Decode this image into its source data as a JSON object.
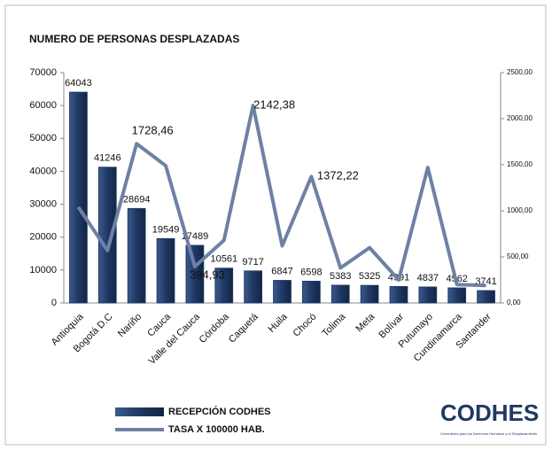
{
  "chart_data": {
    "type": "bar",
    "title": "NUMERO DE PERSONAS DESPLAZADAS",
    "categories": [
      "Antioquia",
      "Bogotá D.C",
      "Nariño",
      "Cauca",
      "Valle del Cauca",
      "Córdoba",
      "Caquetá",
      "Huila",
      "Chocó",
      "Tolima",
      "Meta",
      "Bolívar",
      "Putumayo",
      "Cundinamarca",
      "Santander"
    ],
    "series": [
      {
        "name": "RECEPCIÓN CODHES",
        "type": "bar",
        "color": "#1f3864",
        "values": [
          64043,
          41246,
          28694,
          19549,
          17489,
          10561,
          9717,
          6847,
          6598,
          5383,
          5325,
          4991,
          4837,
          4562,
          3741
        ]
      },
      {
        "name": "TASA X 100000 HAB.",
        "type": "line",
        "axis": "y2",
        "color": "#6f80a6",
        "values": [
          1040,
          570,
          1728.46,
          1490,
          394.93,
          680,
          2142.38,
          620,
          1372.22,
          380,
          600,
          250,
          1470,
          200,
          190
        ],
        "value_labels": [
          null,
          null,
          "1728,46",
          null,
          "394,93",
          null,
          "2142,38",
          null,
          "1372,22",
          null,
          null,
          null,
          null,
          null,
          null
        ]
      }
    ],
    "ylim": [
      0,
      70000
    ],
    "yticks": [
      0,
      10000,
      20000,
      30000,
      40000,
      50000,
      60000,
      70000
    ],
    "y2lim": [
      0,
      2500
    ],
    "y2ticks": [
      {
        "value": 0,
        "label": "0,00"
      },
      {
        "value": 500,
        "label": "500,00"
      },
      {
        "value": 1000,
        "label": "1000,00"
      },
      {
        "value": 1500,
        "label": "1500,00"
      },
      {
        "value": 2000,
        "label": "2000,00"
      },
      {
        "value": 2500,
        "label": "2500,00"
      }
    ],
    "legend": "bottom-left"
  },
  "logo": {
    "text": "CODHES",
    "subtitle": "Consultoría para los Derechos Humanos y el Desplazamiento"
  }
}
